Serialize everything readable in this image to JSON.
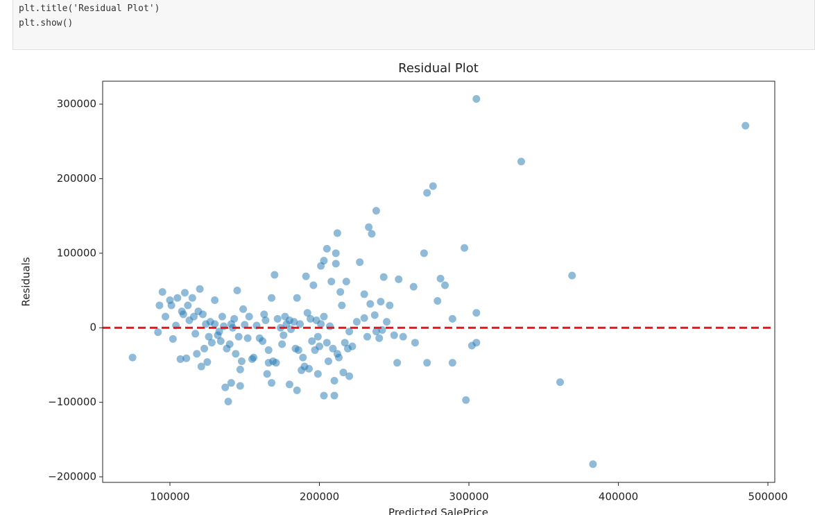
{
  "code_cell": {
    "lines": [
      "plt.title('Residual Plot')",
      "plt.show()"
    ]
  },
  "chart_data": {
    "type": "scatter",
    "title": "Residual Plot",
    "xlabel": "Predicted SalePrice",
    "ylabel": "Residuals",
    "color": "#1f77b4",
    "alpha": 0.5,
    "hline": {
      "value": 0,
      "color": "#e8141a"
    },
    "xlim": [
      55000,
      504600
    ],
    "ylim": [
      -207450,
      330750
    ],
    "xticks": [
      100000,
      200000,
      300000,
      400000,
      500000
    ],
    "yticks": [
      {
        "value": -200000,
        "label": "−200000"
      },
      {
        "value": -100000,
        "label": "−100000"
      },
      0,
      100000,
      200000,
      300000
    ],
    "x": [
      75000,
      305000,
      485000,
      335000,
      383000,
      361000,
      369000,
      297000,
      298000,
      272000,
      276000,
      238000,
      233000,
      235000,
      212000,
      205000,
      211000,
      270000,
      227000,
      203000,
      211000,
      201000,
      243000,
      253000,
      281000,
      284000,
      263000,
      279000,
      289000,
      305000,
      302000,
      305000,
      289000,
      272000,
      252000,
      264000,
      250000,
      256000,
      170000,
      145000,
      185000,
      168000,
      196000,
      191000,
      208000,
      218000,
      95000,
      120000,
      110000,
      93000,
      100000,
      115000,
      130000,
      210000,
      203000,
      139000,
      137000,
      141000,
      147000,
      168000,
      180000,
      185000,
      199000,
      165000,
      210000,
      220000,
      216000,
      188000,
      193000,
      147000,
      121000,
      107000,
      111000,
      125000,
      92000,
      97000,
      102000,
      104000,
      108000,
      113000,
      117000,
      122000,
      126000,
      130000,
      134000,
      136000,
      140000,
      143000,
      146000,
      150000,
      152000,
      156000,
      160000,
      163000,
      166000,
      169000,
      172000,
      175000,
      178000,
      181000,
      183000,
      186000,
      189000,
      192000,
      195000,
      198000,
      200000,
      203000,
      206000,
      209000,
      212000,
      215000,
      217000,
      220000,
      222000,
      225000,
      230000,
      232000,
      234000,
      237000,
      240000,
      242000,
      245000,
      247000,
      230000,
      238000,
      241000,
      118000,
      123000,
      128000,
      132000,
      138000,
      144000,
      148000,
      155000,
      162000,
      166000,
      171000,
      176000,
      184000,
      190000,
      197000,
      205000,
      213000,
      219000,
      105000,
      112000,
      119000,
      127000,
      135000,
      142000,
      149000,
      158000,
      164000,
      174000,
      180000,
      187000,
      194000,
      201000,
      207000,
      214000,
      101000,
      109000,
      116000,
      124000,
      133000,
      141000,
      153000,
      177000,
      199000
    ],
    "y": [
      -40000,
      307000,
      271000,
      223000,
      -183000,
      -73000,
      70000,
      107000,
      -97000,
      181000,
      190000,
      157000,
      135000,
      126000,
      127000,
      106000,
      100000,
      100000,
      88000,
      90000,
      86000,
      83000,
      68000,
      65000,
      66000,
      57000,
      55000,
      36000,
      12000,
      20000,
      -24000,
      -20000,
      -47000,
      -47000,
      -47000,
      -20000,
      -10000,
      -12000,
      71000,
      50000,
      40000,
      40000,
      57000,
      69000,
      62000,
      62000,
      48000,
      52000,
      47000,
      30000,
      37000,
      40000,
      37000,
      -91000,
      -91000,
      -99000,
      -80000,
      -74000,
      -78000,
      -74000,
      -76000,
      -84000,
      -62000,
      -62000,
      -71000,
      -65000,
      -60000,
      -57000,
      -55000,
      -56000,
      -52000,
      -42000,
      -41000,
      -46000,
      -6000,
      15000,
      -15000,
      3000,
      22000,
      10000,
      -8000,
      18000,
      -12000,
      5000,
      -18000,
      2000,
      -22000,
      12000,
      -12000,
      4000,
      -14000,
      -40000,
      -14000,
      18000,
      -30000,
      -45000,
      12000,
      -22000,
      5000,
      -2000,
      8000,
      -30000,
      -40000,
      20000,
      -18000,
      10000,
      -25000,
      15000,
      -45000,
      -28000,
      -35000,
      30000,
      -20000,
      -5000,
      -25000,
      8000,
      45000,
      -12000,
      32000,
      17000,
      -14000,
      -3000,
      8000,
      30000,
      13000,
      -5000,
      35000,
      -35000,
      -28000,
      -20000,
      -10000,
      -28000,
      -35000,
      -45000,
      -42000,
      -18000,
      -47000,
      -47000,
      -10000,
      -28000,
      -52000,
      -30000,
      -20000,
      -40000,
      -28000,
      40000,
      30000,
      22000,
      8000,
      15000,
      0,
      25000,
      3000,
      10000,
      0,
      10000,
      5000,
      12000,
      5000,
      2000,
      48000,
      30000,
      18000,
      15000,
      5000,
      -5000,
      5000,
      15000,
      15000,
      -12000
    ]
  }
}
